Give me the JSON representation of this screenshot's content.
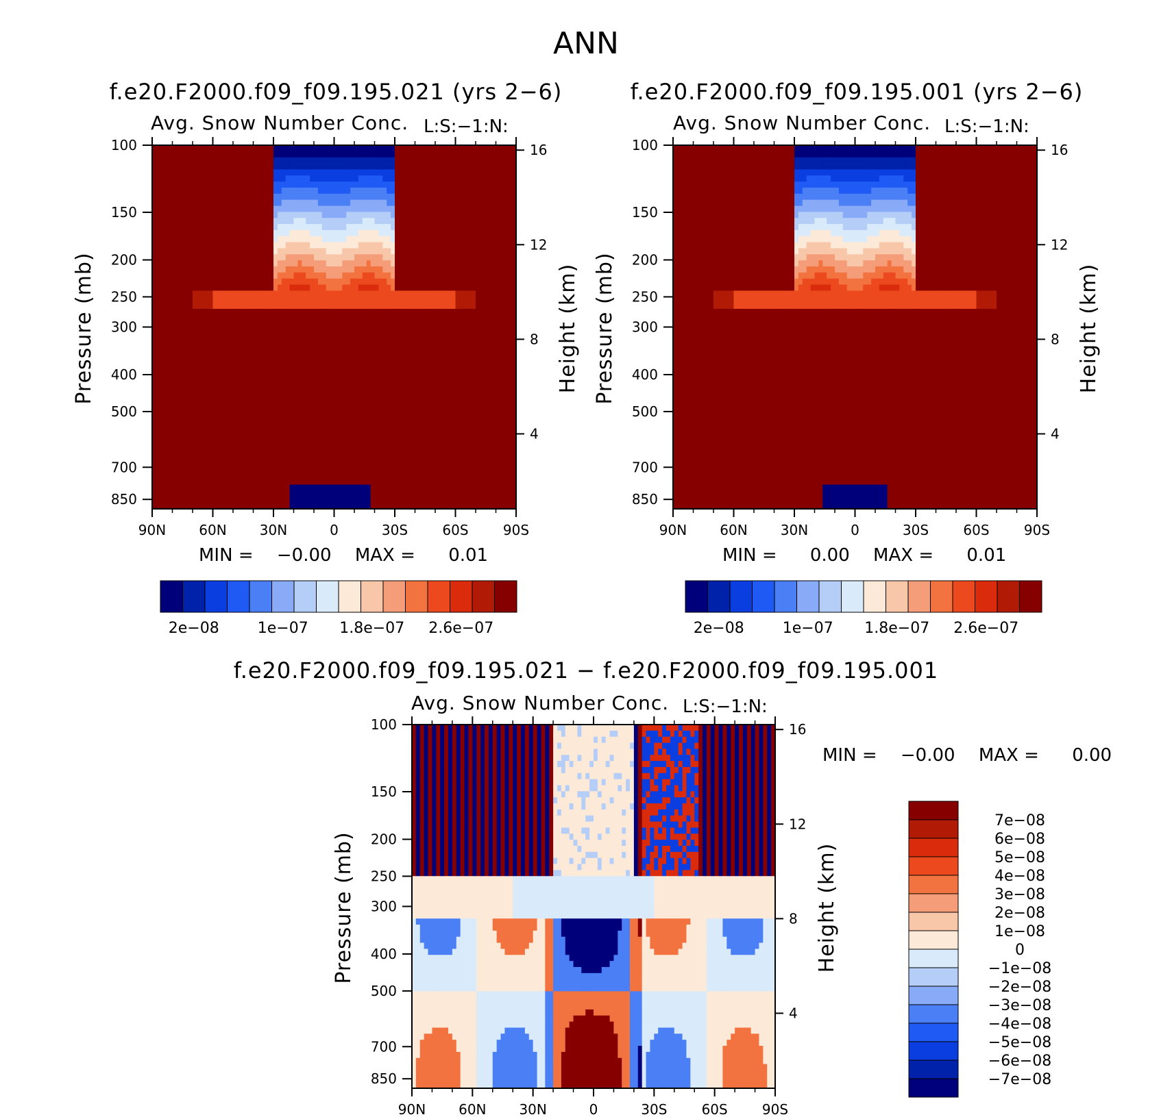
{
  "figure": {
    "title": "ANN"
  },
  "colors": {
    "seq_palette": [
      "#00007a",
      "#0021a9",
      "#0a3ee0",
      "#1f5af5",
      "#4a7ff5",
      "#88aaf7",
      "#b5cef7",
      "#d9ebfa",
      "#fde9d8",
      "#f8c6a9",
      "#f59d79",
      "#f2733f",
      "#ec4a1e",
      "#da2c0c",
      "#b11a04",
      "#870000"
    ],
    "diff_palette": [
      "#00007a",
      "#0021a9",
      "#0a3ee0",
      "#1f5af5",
      "#4a7ff5",
      "#88aaf7",
      "#b5cef7",
      "#d9ebfa",
      "#fde9d8",
      "#f8c6a9",
      "#f59d79",
      "#f2733f",
      "#ec4a1e",
      "#da2c0c",
      "#b11a04",
      "#870000"
    ]
  },
  "panels": [
    {
      "case_title": "f.e20.F2000.f09_f09.195.021 (yrs 2−6)",
      "var_title": "Avg. Snow Number Conc.",
      "right_title": "L:S:−1:N:",
      "ylabel": "Pressure (mb)",
      "ylabel2": "Height (km)",
      "stats": {
        "min_label": "MIN =",
        "min": "−0.00",
        "max_label": "MAX =",
        "max": "0.01"
      },
      "colorbar_labels": [
        "2e−08",
        "1e−07",
        "1.8e−07",
        "2.6e−07"
      ]
    },
    {
      "case_title": "f.e20.F2000.f09_f09.195.001 (yrs 2−6)",
      "var_title": "Avg. Snow Number Conc.",
      "right_title": "L:S:−1:N:",
      "ylabel": "Pressure (mb)",
      "ylabel2": "Height (km)",
      "stats": {
        "min_label": "MIN =",
        "min": "0.00",
        "max_label": "MAX =",
        "max": "0.01"
      },
      "colorbar_labels": [
        "2e−08",
        "1e−07",
        "1.8e−07",
        "2.6e−07"
      ]
    },
    {
      "case_title": "f.e20.F2000.f09_f09.195.021 − f.e20.F2000.f09_f09.195.001",
      "var_title": "Avg. Snow Number Conc.",
      "right_title": "L:S:−1:N:",
      "ylabel": "Pressure (mb)",
      "ylabel2": "Height (km)",
      "stats": {
        "min_label": "MIN =",
        "min": "−0.00",
        "max_label": "MAX =",
        "max": "0.00"
      },
      "colorbar_labels": [
        "7e−08",
        "6e−08",
        "5e−08",
        "4e−08",
        "3e−08",
        "2e−08",
        "1e−08",
        "0",
        "−1e−08",
        "−2e−08",
        "−3e−08",
        "−4e−08",
        "−5e−08",
        "−6e−08",
        "−7e−08"
      ]
    }
  ],
  "chart_data": [
    {
      "type": "heatmap",
      "title": "f.e20.F2000.f09_f09.195.021 (yrs 2−6)",
      "subtitle": "Avg. Snow Number Conc.",
      "xlabel": "",
      "ylabel": "Pressure (mb)",
      "y2label": "Height (km)",
      "x_ticks": [
        "90N",
        "60N",
        "30N",
        "0",
        "30S",
        "60S",
        "90S"
      ],
      "y_ticks": [
        100,
        150,
        200,
        250,
        300,
        400,
        500,
        700,
        850
      ],
      "y2_ticks": [
        16,
        12,
        8,
        4
      ],
      "y_scale": "log",
      "ylim": [
        100,
        900
      ],
      "grid": false,
      "levels": [
        2e-08,
        1e-07,
        1.8e-07,
        2.6e-07
      ],
      "min": "−0.00",
      "max": "0.01",
      "legend_placement": "bottom"
    },
    {
      "type": "heatmap",
      "title": "f.e20.F2000.f09_f09.195.001 (yrs 2−6)",
      "subtitle": "Avg. Snow Number Conc.",
      "xlabel": "",
      "ylabel": "Pressure (mb)",
      "y2label": "Height (km)",
      "x_ticks": [
        "90N",
        "60N",
        "30N",
        "0",
        "30S",
        "60S",
        "90S"
      ],
      "y_ticks": [
        100,
        150,
        200,
        250,
        300,
        400,
        500,
        700,
        850
      ],
      "y2_ticks": [
        16,
        12,
        8,
        4
      ],
      "y_scale": "log",
      "ylim": [
        100,
        900
      ],
      "grid": false,
      "levels": [
        2e-08,
        1e-07,
        1.8e-07,
        2.6e-07
      ],
      "min": "0.00",
      "max": "0.01",
      "legend_placement": "bottom"
    },
    {
      "type": "heatmap",
      "title": "f.e20.F2000.f09_f09.195.021 − f.e20.F2000.f09_f09.195.001",
      "subtitle": "Avg. Snow Number Conc.",
      "xlabel": "",
      "ylabel": "Pressure (mb)",
      "y2label": "Height (km)",
      "x_ticks": [
        "90N",
        "60N",
        "30N",
        "0",
        "30S",
        "60S",
        "90S"
      ],
      "y_ticks": [
        100,
        150,
        200,
        250,
        300,
        400,
        500,
        700,
        850
      ],
      "y2_ticks": [
        16,
        12,
        8,
        4
      ],
      "y_scale": "log",
      "ylim": [
        100,
        900
      ],
      "grid": false,
      "levels": [
        -7e-08,
        -6e-08,
        -5e-08,
        -4e-08,
        -3e-08,
        -2e-08,
        -1e-08,
        0,
        1e-08,
        2e-08,
        3e-08,
        4e-08,
        5e-08,
        6e-08,
        7e-08
      ],
      "min": "−0.00",
      "max": "0.00",
      "legend_placement": "right"
    }
  ]
}
